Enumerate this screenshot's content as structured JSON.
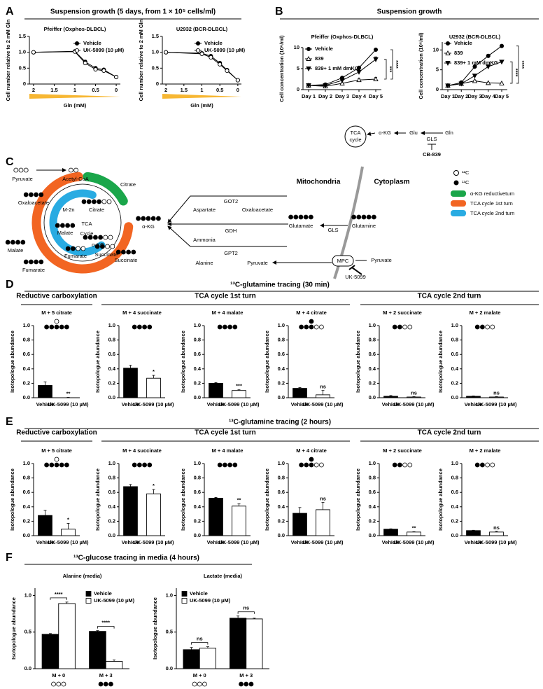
{
  "panels": [
    {
      "label": "A",
      "title": "Suspension growth (5 days, from 1 × 10⁵ cells/ml)"
    },
    {
      "label": "B",
      "title": "Suspension growth"
    },
    {
      "label": "C"
    },
    {
      "label": "D",
      "title": "¹³C-glutamine tracing (30 min)",
      "groups": [
        "Reductive carboxylation",
        "TCA cycle 1st turn",
        "TCA cycle 2nd turn"
      ]
    },
    {
      "label": "E",
      "title": "¹³C-glutamine tracing (2 hours)",
      "groups": [
        "Reductive carboxylation",
        "TCA cycle 1st turn",
        "TCA cycle 2nd turn"
      ]
    },
    {
      "label": "F",
      "title": "¹³C-glucose tracing in media (4 hours)"
    }
  ],
  "group_colors": [
    "#1aa64a",
    "#f26522",
    "#29abe2"
  ],
  "scheme": {
    "tca": "TCA",
    "cycle": "cycle",
    "akg": "α-KG",
    "glu": "Glu",
    "gls": "GLS",
    "gln": "Gln",
    "inhibitor": "CB-839"
  },
  "diagram": {
    "pyruvate": "Pyruvate",
    "acetyl_coa": "Acetyl-CoA",
    "oxaloacetate": "Oxaloacetate",
    "citrate": "Citrate",
    "citrate_reductive": "Citrate",
    "m2n": "M-2n",
    "malate_inner": "Malate",
    "tca": "TCA",
    "cycle": "Cycle",
    "akg": "α-KG",
    "akg_inner": "α-KG",
    "malate": "Malate",
    "fumarate_inner": "Fumarate",
    "succinate_inner": "Succinate",
    "fumarate": "Fumarate",
    "succinate": "Succinate",
    "got2": "GOT2",
    "aspartate": "Aspartate",
    "oxaloacetate_cyto": "Oxaloacetate",
    "gdh": "GDH",
    "ammonia": "Ammonia",
    "glutamate": "Glutamate",
    "gls": "GLS",
    "glutamine": "Glutamine",
    "gpt2": "GPT2",
    "alanine": "Alanine",
    "pyruvate_mito": "Pyruvate",
    "mpc": "MPC",
    "pyruvate_cyto": "Pyruvate",
    "inhibitor": "UK-5099",
    "mitochondria": "Mitochondria",
    "cytoplasm": "Cytoplasm",
    "legend": [
      "¹²C",
      "¹³C",
      "α-KG reductiveturn",
      "TCA cycle 1st turn",
      "TCA cycle 2nd turn"
    ]
  },
  "chart_data": [
    {
      "type": "line",
      "title": "Pfeiffer (Oxphos-DLBCL)",
      "x_label": "Gln (mM)",
      "y_label": "Cell number relative to 2 mM Gln",
      "x": [
        2,
        1,
        0.75,
        0.5,
        0.3,
        0
      ],
      "xlim": [
        2.1,
        -0.1
      ],
      "xticks": [
        2,
        1.5,
        1,
        0.5,
        0
      ],
      "ylim": [
        0,
        1.5
      ],
      "yticks": [
        0,
        0.5,
        {
          "value": 1,
          "label": "1.0"
        },
        1.5
      ],
      "legend": "upper right",
      "series": [
        {
          "name": "Vehicle",
          "color": "#000000",
          "marker": "circle-filled",
          "values": [
            1.0,
            1.03,
            0.7,
            0.5,
            0.45,
            0.22
          ],
          "errors": [
            0.01,
            0.02,
            0.05,
            0.03,
            0.03,
            0.01
          ]
        },
        {
          "name": "UK-5099 (10 µM)",
          "color": "#000000",
          "marker": "circle-open",
          "values": [
            1.0,
            1.02,
            0.66,
            0.46,
            0.42,
            0.22
          ],
          "errors": [
            0.01,
            0.02,
            0.04,
            0.03,
            0.03,
            0.01
          ]
        }
      ]
    },
    {
      "type": "line",
      "title": "U2932 (BCR-DLBCL)",
      "x_label": "Gln (mM)",
      "y_label": "Cell number relative to 2 mM Gln",
      "x": [
        2,
        1,
        0.75,
        0.5,
        0.3,
        0
      ],
      "xlim": [
        2.1,
        -0.1
      ],
      "xticks": [
        2,
        1.5,
        1,
        0.5,
        0
      ],
      "ylim": [
        0,
        1.5
      ],
      "yticks": [
        0,
        0.5,
        {
          "value": 1,
          "label": "1.0"
        },
        1.5
      ],
      "legend": "upper right",
      "series": [
        {
          "name": "Vehicle",
          "color": "#000000",
          "marker": "circle-filled",
          "values": [
            1.0,
            0.97,
            0.88,
            0.66,
            0.44,
            0.12
          ],
          "errors": [
            0.01,
            0.02,
            0.03,
            0.03,
            0.02,
            0.01
          ]
        },
        {
          "name": "UK-5099 (10 µM)",
          "color": "#000000",
          "marker": "circle-open",
          "values": [
            1.0,
            0.95,
            0.84,
            0.62,
            0.42,
            0.12
          ],
          "errors": [
            0.01,
            0.02,
            0.03,
            0.03,
            0.02,
            0.01
          ]
        }
      ]
    },
    {
      "type": "line",
      "title": "Pfeiffer (Oxphos-DLBCL)",
      "y_label": "Cell concentration (10⁶/ml)",
      "categories": [
        "Day 1",
        "Day 2",
        "Day 3",
        "Day 4",
        "Day 5"
      ],
      "ylim": [
        0,
        10
      ],
      "yticks": [
        0,
        5,
        10
      ],
      "legend": "upper left",
      "significance": [
        "****",
        "***"
      ],
      "series": [
        {
          "name": "Vehicle",
          "color": "#000000",
          "marker": "circle-filled",
          "values": [
            1,
            1.2,
            2.8,
            5.2,
            9.5
          ],
          "errors": [
            0.05,
            0.1,
            0.1,
            0.2,
            0.3
          ]
        },
        {
          "name": "839",
          "color": "#000000",
          "marker": "triangle-open",
          "values": [
            1,
            0.8,
            1.5,
            2.3,
            2.5
          ],
          "errors": [
            0.05,
            0.05,
            0.1,
            0.3,
            0.4
          ]
        },
        {
          "name": "839+ 1 mM dmKG",
          "color": "#000000",
          "marker": "triangle-down-filled",
          "values": [
            1,
            1,
            2.2,
            4.2,
            7.2
          ],
          "errors": [
            0.05,
            0.05,
            0.2,
            0.5,
            0.6
          ]
        }
      ]
    },
    {
      "type": "line",
      "title": "U2932 (BCR-DLBCL)",
      "y_label": "Cell concentration (10⁶/ml)",
      "categories": [
        "Day 1",
        "Day 2",
        "Day 3",
        "Day 4",
        "Day 5"
      ],
      "ylim": [
        0,
        12
      ],
      "yticks": [
        0,
        5,
        10
      ],
      "legend": "upper left",
      "significance": [
        "****",
        "****"
      ],
      "series": [
        {
          "name": "Vehicle",
          "color": "#000000",
          "marker": "circle-filled",
          "values": [
            1,
            1.8,
            5.8,
            8.5,
            11
          ],
          "errors": [
            0.05,
            0.1,
            0.6,
            0.4,
            0.3
          ]
        },
        {
          "name": "839",
          "color": "#000000",
          "marker": "triangle-open",
          "values": [
            1,
            1.5,
            2.2,
            1.7,
            1.6
          ],
          "errors": [
            0.05,
            0.1,
            0.2,
            0.1,
            0.1
          ]
        },
        {
          "name": "839+ 1 mM dmKG",
          "color": "#000000",
          "marker": "triangle-down-filled",
          "values": [
            1,
            1.5,
            3.5,
            5.8,
            7
          ],
          "errors": [
            0.05,
            0.1,
            0.2,
            0.1,
            0.1
          ]
        }
      ]
    },
    {
      "type": "bar",
      "title": "M + 5 citrate",
      "y_label": "Isotopologue abundance",
      "categories": [
        "Vehicle",
        "UK-5099 (10 µM)"
      ],
      "values": [
        0.17,
        0
      ],
      "errors": [
        0.05,
        0.005
      ],
      "colors": [
        "#000000",
        "#ffffff"
      ],
      "ylim": [
        0,
        1
      ],
      "yticks": [
        {
          "value": 0,
          "label": "0.0"
        },
        0.2,
        0.4,
        0.6,
        0.8,
        {
          "value": 1,
          "label": "1.0"
        }
      ],
      "annotation": "**"
    },
    {
      "type": "bar",
      "title": "M + 4 succinate",
      "y_label": "Isotopologue abundance",
      "categories": [
        "Vehicle",
        "UK-5099 (10 µM)"
      ],
      "values": [
        0.41,
        0.27
      ],
      "errors": [
        0.04,
        0.04
      ],
      "colors": [
        "#000000",
        "#ffffff"
      ],
      "ylim": [
        0,
        1
      ],
      "yticks": [
        {
          "value": 0,
          "label": "0.0"
        },
        0.2,
        0.4,
        0.6,
        0.8,
        {
          "value": 1,
          "label": "1.0"
        }
      ],
      "annotation": "*"
    },
    {
      "type": "bar",
      "title": "M + 4 malate",
      "y_label": "Isotopologue abundance",
      "categories": [
        "Vehicle",
        "UK-5099 (10 µM)"
      ],
      "values": [
        0.2,
        0.1
      ],
      "errors": [
        0.01,
        0.01
      ],
      "colors": [
        "#000000",
        "#ffffff"
      ],
      "ylim": [
        0,
        1
      ],
      "yticks": [
        {
          "value": 0,
          "label": "0.0"
        },
        0.2,
        0.4,
        0.6,
        0.8,
        {
          "value": 1,
          "label": "1.0"
        }
      ],
      "annotation": "***"
    },
    {
      "type": "bar",
      "title": "M + 4 citrate",
      "y_label": "Isotopologue abundance",
      "categories": [
        "Vehicle",
        "UK-5099 (10 µM)"
      ],
      "values": [
        0.13,
        0.04
      ],
      "errors": [
        0.01,
        0.06
      ],
      "colors": [
        "#000000",
        "#ffffff"
      ],
      "ylim": [
        0,
        1
      ],
      "yticks": [
        {
          "value": 0,
          "label": "0.0"
        },
        0.2,
        0.4,
        0.6,
        0.8,
        {
          "value": 1,
          "label": "1.0"
        }
      ],
      "annotation": "ns"
    },
    {
      "type": "bar",
      "title": "M + 2 succinate",
      "y_label": "Isotopologue abundance",
      "categories": [
        "Vehicle",
        "UK-5099 (10 µM)"
      ],
      "values": [
        0.02,
        0.01
      ],
      "errors": [
        0.01,
        0.005
      ],
      "colors": [
        "#000000",
        "#ffffff"
      ],
      "ylim": [
        0,
        1
      ],
      "yticks": [
        {
          "value": 0,
          "label": "0.0"
        },
        0.2,
        0.4,
        0.6,
        0.8,
        {
          "value": 1,
          "label": "1.0"
        }
      ],
      "annotation": "ns"
    },
    {
      "type": "bar",
      "title": "M + 2 malate",
      "y_label": "Isotopologue abundance",
      "categories": [
        "Vehicle",
        "UK-5099 (10 µM)"
      ],
      "values": [
        0.02,
        0.01
      ],
      "errors": [
        0.005,
        0.005
      ],
      "colors": [
        "#000000",
        "#ffffff"
      ],
      "ylim": [
        0,
        1
      ],
      "yticks": [
        {
          "value": 0,
          "label": "0.0"
        },
        0.2,
        0.4,
        0.6,
        0.8,
        {
          "value": 1,
          "label": "1.0"
        }
      ],
      "annotation": "ns"
    },
    {
      "type": "bar",
      "title": "M + 5 citrate",
      "y_label": "Isotopologue abundance",
      "categories": [
        "Vehicle",
        "UK-5099 (10 µM)"
      ],
      "values": [
        0.28,
        0.09
      ],
      "errors": [
        0.07,
        0.08
      ],
      "colors": [
        "#000000",
        "#ffffff"
      ],
      "ylim": [
        0,
        1
      ],
      "yticks": [
        {
          "value": 0,
          "label": "0.0"
        },
        0.2,
        0.4,
        0.6,
        0.8,
        {
          "value": 1,
          "label": "1.0"
        }
      ],
      "annotation": "*"
    },
    {
      "type": "bar",
      "title": "M + 4 succinate",
      "y_label": "Isotopologue abundance",
      "categories": [
        "Vehicle",
        "UK-5099 (10 µM)"
      ],
      "values": [
        0.68,
        0.58
      ],
      "errors": [
        0.03,
        0.06
      ],
      "colors": [
        "#000000",
        "#ffffff"
      ],
      "ylim": [
        0,
        1
      ],
      "yticks": [
        {
          "value": 0,
          "label": "0.0"
        },
        0.2,
        0.4,
        0.6,
        0.8,
        {
          "value": 1,
          "label": "1.0"
        }
      ],
      "annotation": "*"
    },
    {
      "type": "bar",
      "title": "M + 4 malate",
      "y_label": "Isotopologue abundance",
      "categories": [
        "Vehicle",
        "UK-5099 (10 µM)"
      ],
      "values": [
        0.52,
        0.41
      ],
      "errors": [
        0.01,
        0.03
      ],
      "colors": [
        "#000000",
        "#ffffff"
      ],
      "ylim": [
        0,
        1
      ],
      "yticks": [
        {
          "value": 0,
          "label": "0.0"
        },
        0.2,
        0.4,
        0.6,
        0.8,
        {
          "value": 1,
          "label": "1.0"
        }
      ],
      "annotation": "**"
    },
    {
      "type": "bar",
      "title": "M + 4 citrate",
      "y_label": "Isotopologue abundance",
      "categories": [
        "Vehicle",
        "UK-5099 (10 µM)"
      ],
      "values": [
        0.31,
        0.36
      ],
      "errors": [
        0.08,
        0.1
      ],
      "colors": [
        "#000000",
        "#ffffff"
      ],
      "ylim": [
        0,
        1
      ],
      "yticks": [
        {
          "value": 0,
          "label": "0.0"
        },
        0.2,
        0.4,
        0.6,
        0.8,
        {
          "value": 1,
          "label": "1.0"
        }
      ],
      "annotation": "ns"
    },
    {
      "type": "bar",
      "title": "M + 2 succinate",
      "y_label": "Isotopologue abundance",
      "categories": [
        "Vehicle",
        "UK-5099 (10 µM)"
      ],
      "values": [
        0.09,
        0.05
      ],
      "errors": [
        0.005,
        0.005
      ],
      "colors": [
        "#000000",
        "#ffffff"
      ],
      "ylim": [
        0,
        1
      ],
      "yticks": [
        {
          "value": 0,
          "label": "0.0"
        },
        0.2,
        0.4,
        0.6,
        0.8,
        {
          "value": 1,
          "label": "1.0"
        }
      ],
      "annotation": "**"
    },
    {
      "type": "bar",
      "title": "M + 2 malate",
      "y_label": "Isotopologue abundance",
      "categories": [
        "Vehicle",
        "UK-5099 (10 µM)"
      ],
      "values": [
        0.07,
        0.05
      ],
      "errors": [
        0.005,
        0.01
      ],
      "colors": [
        "#000000",
        "#ffffff"
      ],
      "ylim": [
        0,
        1
      ],
      "yticks": [
        {
          "value": 0,
          "label": "0.0"
        },
        0.2,
        0.4,
        0.6,
        0.8,
        {
          "value": 1,
          "label": "1.0"
        }
      ],
      "annotation": "ns"
    },
    {
      "type": "bar",
      "title": "Alanine (media)",
      "y_label": "Isotopologue abundance",
      "categories": [
        "M + 0",
        "M + 3"
      ],
      "ylim": [
        0,
        1.1
      ],
      "yticks": [
        {
          "value": 0,
          "label": "0.0"
        },
        0.5,
        {
          "value": 1,
          "label": "1.0"
        }
      ],
      "legend": "upper right",
      "annotations": [
        "****",
        "****"
      ],
      "series": [
        {
          "name": "Vehicle",
          "color": "#000000",
          "values": [
            0.47,
            0.51
          ],
          "errors": [
            0.01,
            0.01
          ]
        },
        {
          "name": "UK-5099 (10 µM)",
          "color": "#ffffff",
          "values": [
            0.89,
            0.1
          ],
          "errors": [
            0.02,
            0.02
          ]
        }
      ]
    },
    {
      "type": "bar",
      "title": "Lactate (media)",
      "y_label": "Isotopologue abundance",
      "categories": [
        "M + 0",
        "M + 3"
      ],
      "ylim": [
        0,
        1.1
      ],
      "yticks": [
        {
          "value": 0,
          "label": "0.0"
        },
        0.5,
        {
          "value": 1,
          "label": "1.0"
        }
      ],
      "legend": "upper left",
      "annotations": [
        "ns",
        "ns"
      ],
      "series": [
        {
          "name": "Vehicle",
          "color": "#000000",
          "values": [
            0.26,
            0.69
          ],
          "errors": [
            0.03,
            0.03
          ]
        },
        {
          "name": "UK-5099 (10 µM)",
          "color": "#ffffff",
          "values": [
            0.28,
            0.68
          ],
          "errors": [
            0.02,
            0.01
          ]
        }
      ]
    }
  ]
}
